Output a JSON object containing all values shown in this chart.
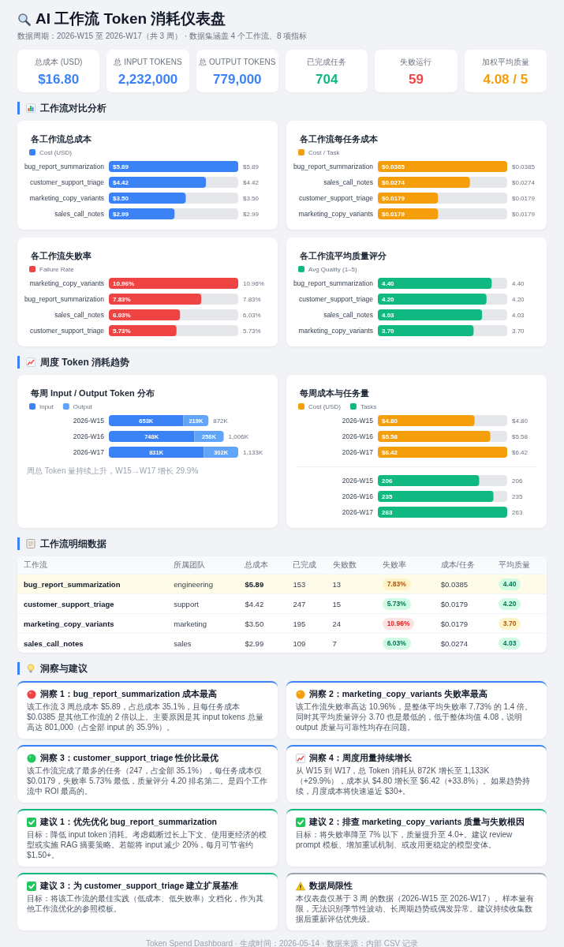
{
  "chart_data": [
    {
      "type": "other",
      "title": "AI 工作流 Token 消耗仪表盘",
      "subtitle": "数据周期：2026-W15 至 2026-W17（共 3 周） · 数据集涵盖 4 个工作流、8 项指标",
      "annotations": [
        "总成本 (USD)",
        "$16.80",
        "总 INPUT TOKENS",
        "2,232,000",
        "总 OUTPUT TOKENS",
        "779,000",
        "已完成任务",
        "704",
        "失败运行",
        "59",
        "加权平均质量",
        "4.08 / 5"
      ]
    },
    {
      "type": "other",
      "title": "工作流对比分析"
    },
    {
      "type": "bar",
      "orientation": "horizontal",
      "title": "各工作流总成本",
      "categories": [
        "bug_report_summarization",
        "customer_support_triage",
        "marketing_copy_variants",
        "sales_call_notes"
      ],
      "series": [
        {
          "name": "Cost (USD)",
          "color": "#3b82f6",
          "values": [
            5.89,
            4.42,
            3.5,
            2.99
          ],
          "value_labels": [
            "$5.89",
            "$4.42",
            "$3.50",
            "$2.99"
          ]
        }
      ],
      "xlim": [
        0,
        5.89
      ],
      "legend": "top left",
      "tick_labels": "y"
    },
    {
      "type": "bar",
      "orientation": "horizontal",
      "title": "各工作流每任务成本",
      "categories": [
        "bug_report_summarization",
        "sales_call_notes",
        "customer_support_triage",
        "marketing_copy_variants"
      ],
      "series": [
        {
          "name": "Cost / Task",
          "color": "#f59e0b",
          "values": [
            0.0385,
            0.0274,
            0.0179,
            0.0179
          ],
          "value_labels": [
            "$0.0385",
            "$0.0274",
            "$0.0179",
            "$0.0179"
          ]
        }
      ],
      "xlim": [
        0,
        0.0385
      ],
      "legend": "top left",
      "tick_labels": "y"
    },
    {
      "type": "bar",
      "orientation": "horizontal",
      "title": "各工作流失败率",
      "categories": [
        "marketing_copy_variants",
        "bug_report_summarization",
        "sales_call_notes",
        "customer_support_triage"
      ],
      "series": [
        {
          "name": "Failure Rate",
          "color": "#ef4444",
          "values": [
            10.96,
            7.83,
            6.03,
            5.73
          ],
          "value_labels": [
            "10.96%",
            "7.83%",
            "6.03%",
            "5.73%"
          ]
        }
      ],
      "xlim": [
        0,
        10.96
      ],
      "legend": "top left",
      "tick_labels": "y"
    },
    {
      "type": "bar",
      "orientation": "horizontal",
      "title": "各工作流平均质量评分",
      "categories": [
        "bug_report_summarization",
        "customer_support_triage",
        "sales_call_notes",
        "marketing_copy_variants"
      ],
      "series": [
        {
          "name": "Avg Quality (1–5)",
          "color": "#10b981",
          "values": [
            4.4,
            4.2,
            4.03,
            3.7
          ],
          "value_labels": [
            "4.40",
            "4.20",
            "4.03",
            "3.70"
          ]
        }
      ],
      "xlim": [
        0,
        5
      ],
      "legend": "top left",
      "tick_labels": "y"
    },
    {
      "type": "other",
      "title": "周度 Token 消耗趋势"
    },
    {
      "type": "bar",
      "orientation": "horizontal",
      "stacked": true,
      "title": "每周 Input / Output Token 分布",
      "categories": [
        "2026-W15",
        "2026-W16",
        "2026-W17"
      ],
      "series": [
        {
          "name": "Input",
          "color": "#3b82f6",
          "values": [
            653000,
            748000,
            831000
          ],
          "value_labels": [
            "653K",
            "748K",
            "831K"
          ]
        },
        {
          "name": "Output",
          "color": "#60a5fa",
          "values": [
            219000,
            258000,
            302000
          ],
          "value_labels": [
            "219K",
            "258K",
            "302K"
          ]
        }
      ],
      "totals": [
        "872K",
        "1,006K",
        "1,133K"
      ],
      "xlim": [
        0,
        1133000
      ],
      "legend": "top left",
      "tick_labels": "y",
      "annotations": [
        "周总 Token 量持续上升，W15→W17 增长 29.9%"
      ]
    },
    {
      "type": "bar",
      "orientation": "horizontal",
      "title": "每周成本与任务量",
      "categories": [
        "2026-W15",
        "2026-W16",
        "2026-W17"
      ],
      "series": [
        {
          "name": "Cost (USD)",
          "color": "#f59e0b",
          "values": [
            4.8,
            5.58,
            6.42
          ],
          "value_labels": [
            "$4.80",
            "$5.58",
            "$6.42"
          ]
        }
      ],
      "xlim": [
        0,
        6.42
      ],
      "legend": "top left",
      "tick_labels": "y"
    },
    {
      "type": "bar",
      "orientation": "horizontal",
      "categories": [
        "2026-W15",
        "2026-W16",
        "2026-W17"
      ],
      "series": [
        {
          "name": "Tasks",
          "color": "#10b981",
          "values": [
            206,
            235,
            263
          ],
          "value_labels": [
            "206",
            "235",
            "263"
          ]
        }
      ],
      "xlim": [
        0,
        263
      ],
      "legend": "top left",
      "tick_labels": "y"
    },
    {
      "type": "other",
      "title": "工作流明细数据",
      "categories": [
        "工作流",
        "所属团队",
        "总成本",
        "已完成",
        "失败数",
        "失败率",
        "成本/任务",
        "平均质量"
      ],
      "cell_labels": [
        [
          "bug_report_summarization",
          "engineering",
          "$5.89",
          "153",
          "13",
          "7.83%",
          "$0.0385",
          "4.40"
        ],
        [
          "customer_support_triage",
          "support",
          "$4.42",
          "247",
          "15",
          "5.73%",
          "$0.0179",
          "4.20"
        ],
        [
          "marketing_copy_variants",
          "marketing",
          "$3.50",
          "195",
          "24",
          "10.96%",
          "$0.0179",
          "3.70"
        ],
        [
          "sales_call_notes",
          "sales",
          "$2.99",
          "109",
          "7",
          "6.03%",
          "$0.0274",
          "4.03"
        ]
      ]
    },
    {
      "type": "other",
      "title": "洞察与建议",
      "annotations": [
        "洞察 1：bug_report_summarization 成本最高",
        "该工作流 3 周总成本 $5.89，占总成本 35.1%，且每任务成本 $0.0385 是其他工作流的 2 倍以上。主要原因是其 input tokens 总量高达 801,000（占全部 input 的 35.9%）。",
        "洞察 2：marketing_copy_variants 失败率最高",
        "该工作流失败率高达 10.96%，是整体平均失败率 7.73% 的 1.4 倍。同时其平均质量评分 3.70 也是最低的，低于整体均值 4.08，说明 output 质量与可靠性均存在问题。",
        "洞察 3：customer_support_triage 性价比最优",
        "该工作流完成了最多的任务（247，占全部 35.1%），每任务成本仅 $0.0179，失败率 5.73% 最低，质量评分 4.20 排名第二。是四个工作流中 ROI 最高的。",
        "洞察 4：周度用量持续增长",
        "从 W15 到 W17，总 Token 消耗从 872K 增长至 1,133K（+29.9%），成本从 $4.80 增长至 $6.42（+33.8%）。如果趋势持续，月度成本将快速逼近 $30+。",
        "建议 1：优先优化 bug_report_summarization",
        "目标：降低 input token 消耗。考虑截断过长上下文、使用更经济的模型或实施 RAG 摘要策略。若能将 input 减少 20%，每月可节省约 $1.50+。",
        "建议 2：排查 marketing_copy_variants 质量与失败根因",
        "目标：将失败率降至 7% 以下，质量提升至 4.0+。建议 review prompt 模板、增加重试机制、或改用更稳定的模型变体。",
        "建议 3：为 customer_support_triage 建立扩展基准",
        "目标：将该工作流的最佳实践（低成本、低失败率）文档化，作为其他工作流优化的参照模板。",
        "数据局限性",
        "本仪表盘仅基于 3 周 的数据（2026-W15 至 2026-W17）。样本量有限，无法识别季节性波动、长周期趋势或偶发异常。建议持续收集数据后重新评估优先级。"
      ]
    },
    {
      "type": "other",
      "annotations": [
        "Token Spend Dashboard · 生成时间：2026-05-14 · 数据来源：内部 CSV 记录"
      ]
    }
  ]
}
